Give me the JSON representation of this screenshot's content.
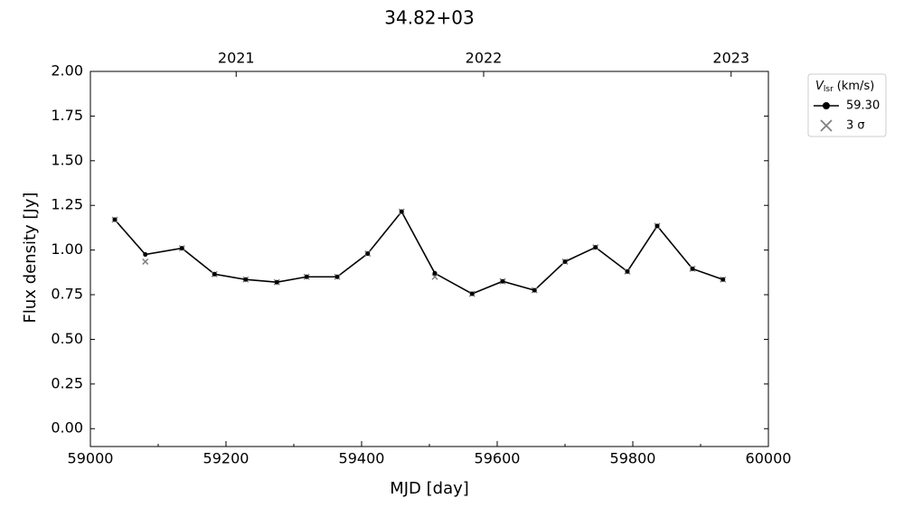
{
  "chart_data": {
    "type": "line",
    "title": "34.82+03",
    "xlabel": "MJD [day]",
    "ylabel": "Flux density [Jy]",
    "x": [
      59036,
      59081,
      59135,
      59183,
      59229,
      59275,
      59319,
      59364,
      59409,
      59459,
      59508,
      59563,
      59608,
      59655,
      59700,
      59745,
      59792,
      59836,
      59888,
      59933
    ],
    "series": [
      {
        "name": "59.30",
        "color": "#000000",
        "marker": "circle",
        "values": [
          1.17,
          0.975,
          1.01,
          0.865,
          0.835,
          0.82,
          0.85,
          0.85,
          0.98,
          1.215,
          0.87,
          0.755,
          0.825,
          0.775,
          0.935,
          1.015,
          0.88,
          1.135,
          0.895,
          0.835
        ]
      },
      {
        "name": "3 σ",
        "color": "#808080",
        "marker": "x",
        "values": [
          1.17,
          0.935,
          1.01,
          0.865,
          0.835,
          0.82,
          0.85,
          0.85,
          0.98,
          1.215,
          0.85,
          0.755,
          0.825,
          0.775,
          0.935,
          1.015,
          0.88,
          1.135,
          0.895,
          0.835
        ]
      }
    ],
    "legend_title_symbol": "V",
    "legend_title_subscript": "lsr",
    "legend_title_unit": "(km/s)",
    "legend": "outside upper right",
    "xlim": [
      59000,
      60000
    ],
    "xticks": [
      59000,
      59200,
      59400,
      59600,
      59800,
      60000
    ],
    "xminor_ticks": [
      59100,
      59300,
      59500,
      59700,
      59900
    ],
    "x2ticks": [
      {
        "value": 59215,
        "label": "2021"
      },
      {
        "value": 59580,
        "label": "2022"
      },
      {
        "value": 59945,
        "label": "2023"
      }
    ],
    "ylim": [
      -0.1,
      2.0
    ],
    "yticks": [
      {
        "value": 0,
        "label": "0.00"
      },
      {
        "value": 0.25,
        "label": "0.25"
      },
      {
        "value": 0.5,
        "label": "0.50"
      },
      {
        "value": 0.75,
        "label": "0.75"
      },
      {
        "value": 1,
        "label": "1.00"
      },
      {
        "value": 1.25,
        "label": "1.25"
      },
      {
        "value": 1.5,
        "label": "1.50"
      },
      {
        "value": 1.75,
        "label": "1.75"
      },
      {
        "value": 2,
        "label": "2.00"
      }
    ],
    "grid": false
  }
}
